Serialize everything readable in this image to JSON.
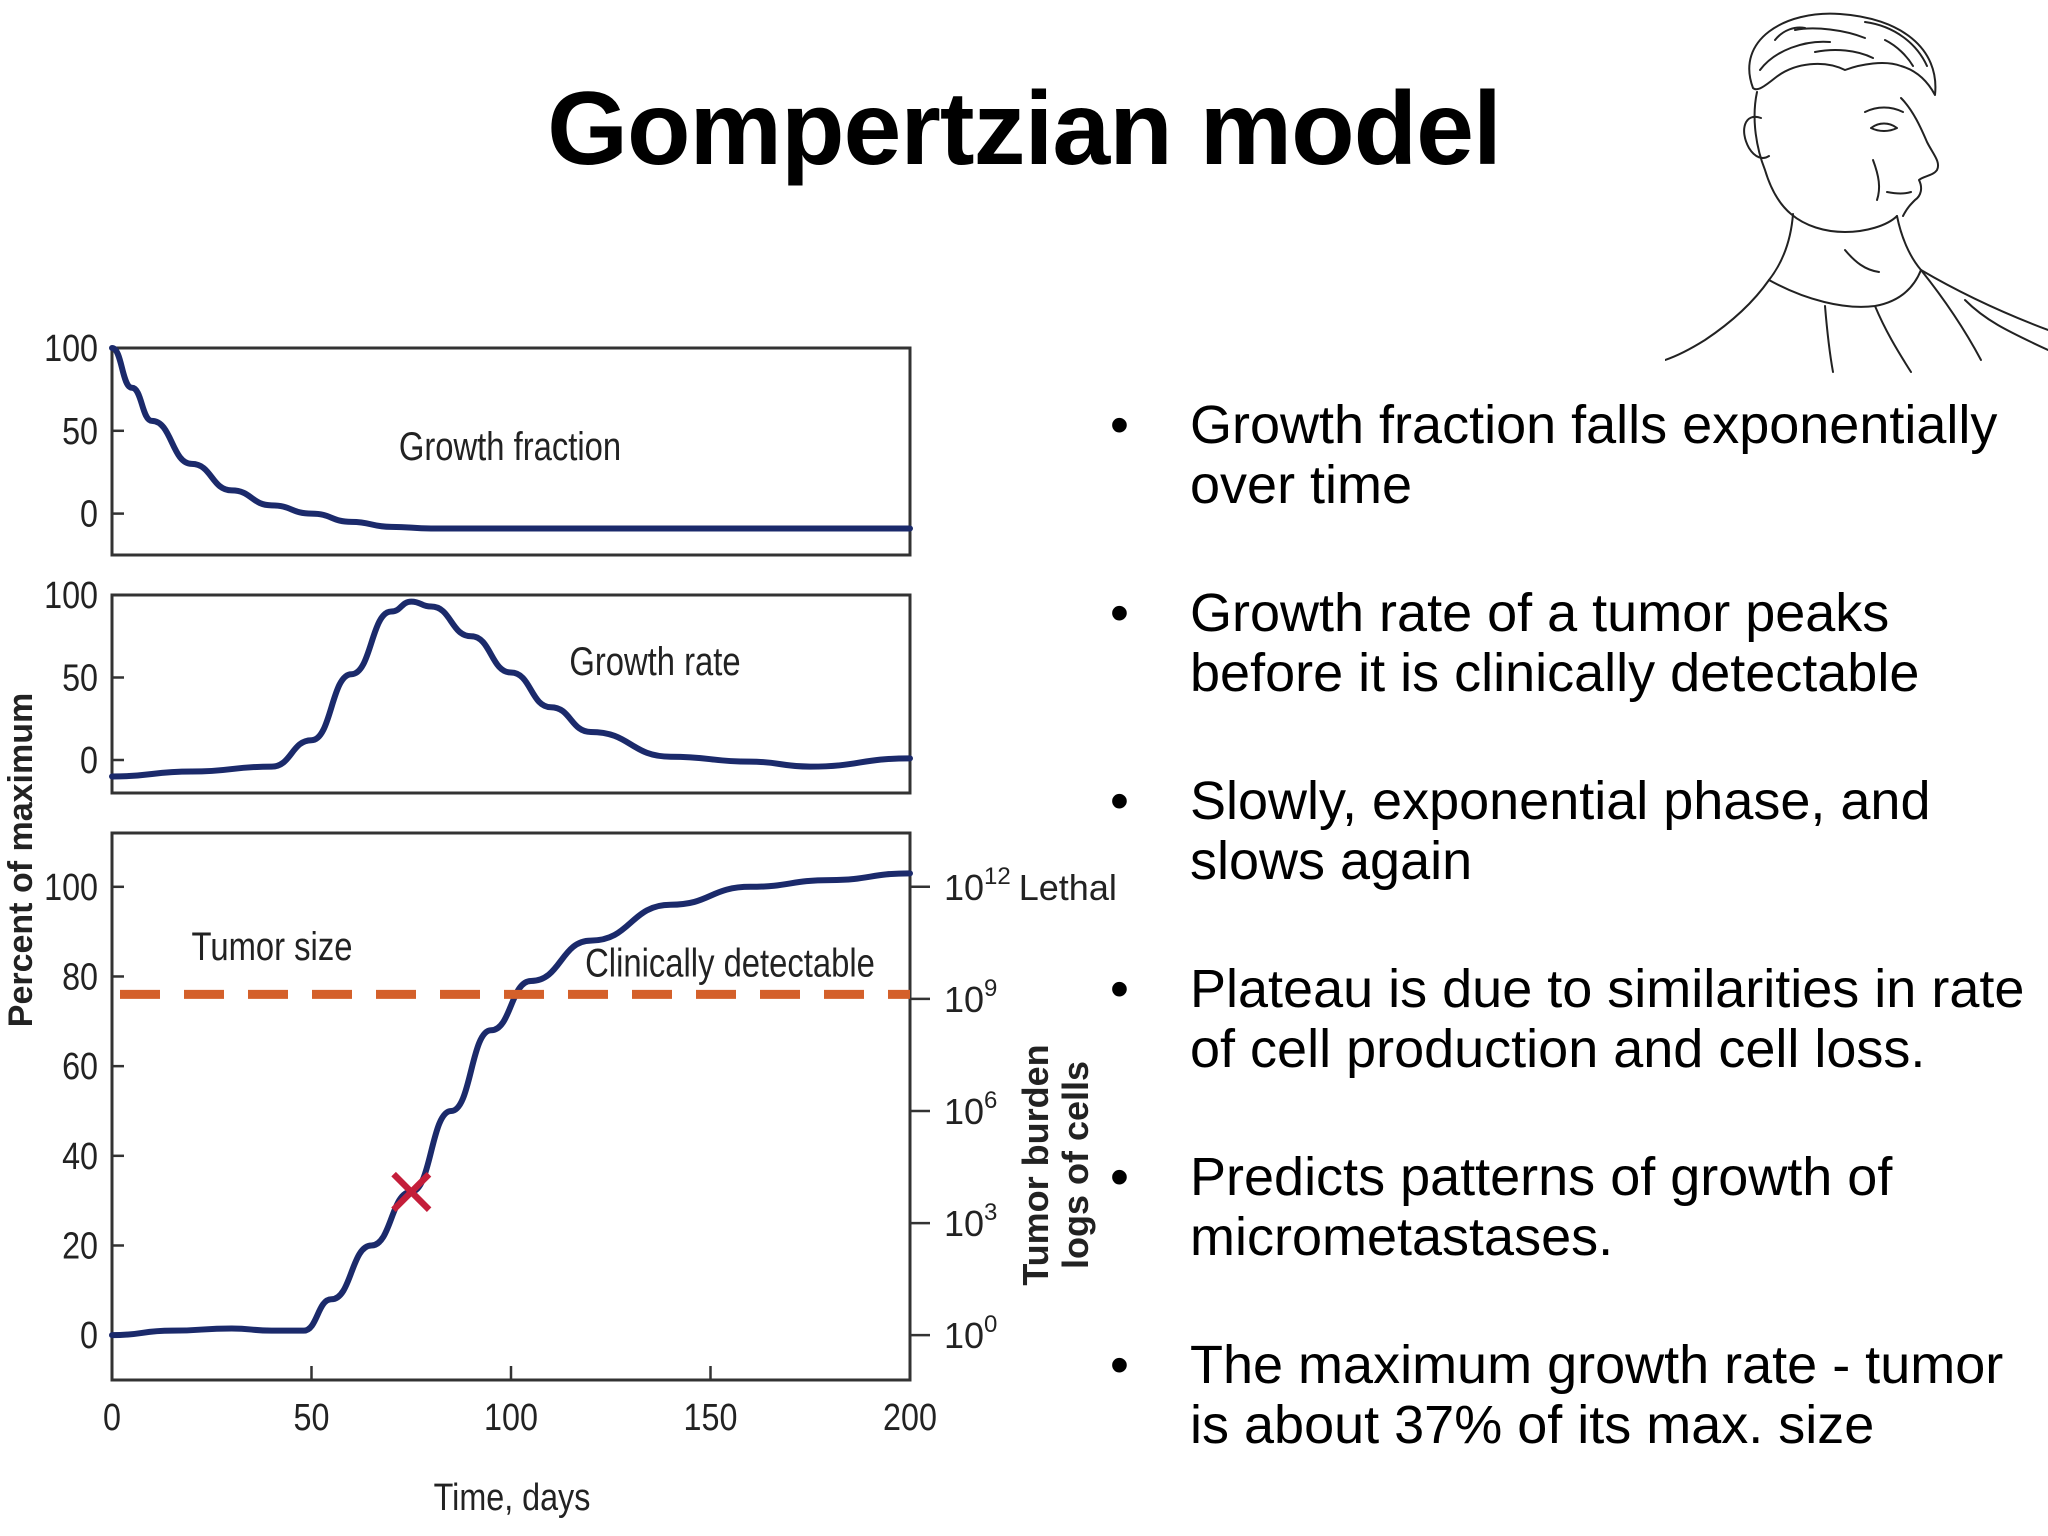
{
  "title": "Gompertzian model",
  "portrait": {
    "icon": "portrait-sketch-icon"
  },
  "bullets": [
    "Growth fraction falls exponentially over time",
    "Growth rate of a tumor peaks before it is clinically detectable",
    "Slowly, exponential phase, and slows again",
    "Plateau is due to similarities in rate of cell production and cell loss.",
    "Predicts patterns of growth  of micrometastases.",
    "The maximum growth rate - tumor is about 37% of its max. size"
  ],
  "chart_data": [
    {
      "type": "line",
      "panel": "growth-fraction",
      "label": "Growth fraction",
      "x": [
        0,
        5,
        10,
        20,
        30,
        40,
        50,
        60,
        70,
        80,
        100,
        150,
        200
      ],
      "y": [
        100,
        76,
        56,
        30,
        14,
        5,
        0,
        -5,
        -8,
        -9,
        -9,
        -9,
        -9
      ],
      "xlim": [
        0,
        200
      ],
      "ylim": [
        -25,
        100
      ],
      "yticks": [
        "100",
        "50",
        "0"
      ],
      "line_color": "#1b2a6b"
    },
    {
      "type": "line",
      "panel": "growth-rate",
      "label": "Growth rate",
      "x": [
        0,
        20,
        40,
        50,
        60,
        70,
        75,
        80,
        90,
        100,
        110,
        120,
        140,
        160,
        175,
        200
      ],
      "y": [
        -10,
        -7,
        -4,
        12,
        52,
        90,
        96,
        93,
        75,
        53,
        32,
        17,
        2,
        -1,
        -4,
        1
      ],
      "xlim": [
        0,
        200
      ],
      "ylim": [
        -20,
        100
      ],
      "yticks": [
        "100",
        "50",
        "0"
      ],
      "line_color": "#1b2a6b"
    },
    {
      "type": "line",
      "panel": "tumor-size",
      "label": "Tumor size",
      "x": [
        0,
        15,
        30,
        40,
        48,
        55,
        65,
        75,
        85,
        95,
        105,
        120,
        140,
        160,
        180,
        200
      ],
      "y": [
        0,
        1,
        1.5,
        1,
        1,
        8,
        20,
        32,
        50,
        68,
        79,
        88,
        96,
        100,
        101.5,
        103
      ],
      "xlim": [
        0,
        200
      ],
      "ylim": [
        -10,
        112
      ],
      "xticks": [
        "0",
        "50",
        "100",
        "150",
        "200"
      ],
      "yticks": [
        "0",
        "20",
        "40",
        "60",
        "80",
        "100"
      ],
      "xlabel": "Time, days",
      "ylabel": "Percent of maximum",
      "y2label": [
        "Tumor burden",
        "logs of cells"
      ],
      "y2ticks": [
        {
          "exp": "0",
          "y": 0
        },
        {
          "exp": "3",
          "y": 25
        },
        {
          "exp": "6",
          "y": 50
        },
        {
          "exp": "9",
          "y": 75
        },
        {
          "exp": "12",
          "y": 100
        }
      ],
      "y2_base": "10",
      "lethal_label": "Lethal",
      "threshold": {
        "y": 76,
        "label": "Clinically detectable",
        "color": "#d4602a"
      },
      "marker": {
        "x": 75,
        "y": 31,
        "symbol": "×",
        "color": "#c41e3a"
      },
      "line_color": "#1b2a6b"
    }
  ]
}
